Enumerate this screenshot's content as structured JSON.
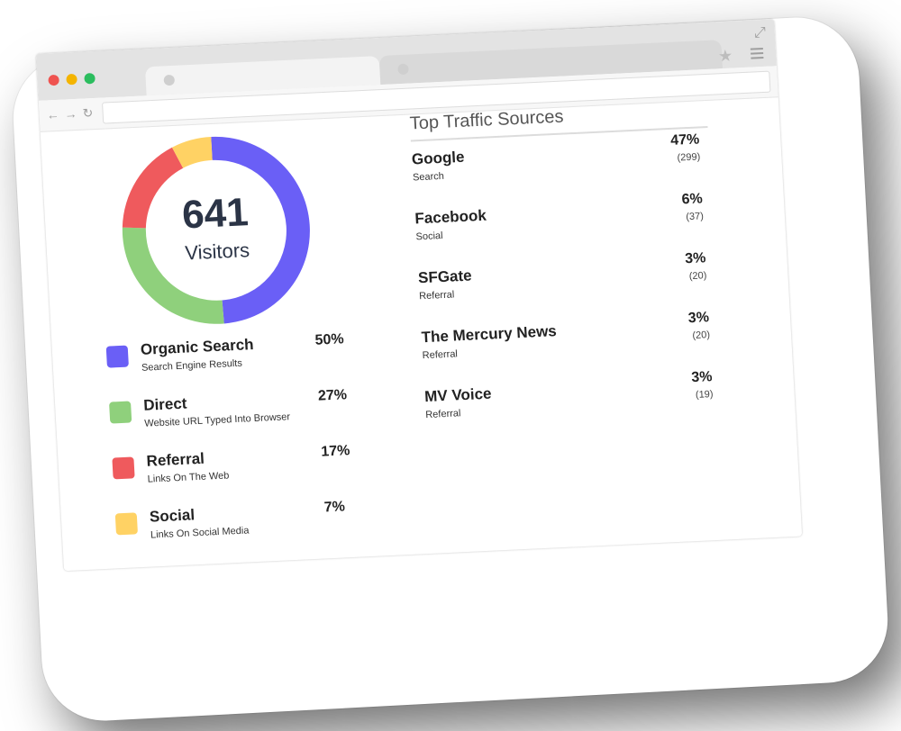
{
  "visitors": {
    "total": "641",
    "label": "Visitors"
  },
  "colors": {
    "organic": "#6a5ff6",
    "direct": "#8fd07c",
    "referral": "#ef5a5d",
    "social": "#ffd264"
  },
  "breakdown": [
    {
      "name": "Organic Search",
      "description": "Search Engine Results",
      "percent": "50%",
      "value": 50,
      "color": "#6a5ff6"
    },
    {
      "name": "Direct",
      "description": "Website URL Typed Into Browser",
      "percent": "27%",
      "value": 27,
      "color": "#8fd07c"
    },
    {
      "name": "Referral",
      "description": "Links On The Web",
      "percent": "17%",
      "value": 17,
      "color": "#ef5a5d"
    },
    {
      "name": "Social",
      "description": "Links On Social Media",
      "percent": "7%",
      "value": 7,
      "color": "#ffd264"
    }
  ],
  "top_sources": {
    "title": "Top Traffic Sources",
    "items": [
      {
        "name": "Google",
        "category": "Search",
        "percent": "47%",
        "count": "(299)"
      },
      {
        "name": "Facebook",
        "category": "Social",
        "percent": "6%",
        "count": "(37)"
      },
      {
        "name": "SFGate",
        "category": "Referral",
        "percent": "3%",
        "count": "(20)"
      },
      {
        "name": "The Mercury News",
        "category": "Referral",
        "percent": "3%",
        "count": "(20)"
      },
      {
        "name": "MV Voice",
        "category": "Referral",
        "percent": "3%",
        "count": "(19)"
      }
    ]
  },
  "icons": {
    "window_controls": [
      "close-dot-icon",
      "minimize-dot-icon",
      "maximize-dot-icon"
    ],
    "nav": [
      "back-arrow-icon",
      "forward-arrow-icon",
      "reload-icon"
    ],
    "toolbar": [
      "bookmark-star-icon",
      "menu-icon",
      "resize-icon"
    ]
  }
}
